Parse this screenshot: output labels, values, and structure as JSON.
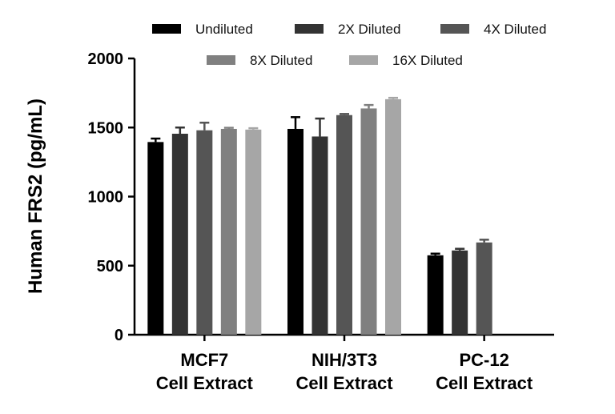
{
  "chart_data": {
    "type": "bar",
    "title": "",
    "xlabel": "",
    "ylabel": "Human FRS2 (pg/mL)",
    "ylim": [
      0,
      2000
    ],
    "yticks": [
      0,
      500,
      1000,
      1500,
      2000
    ],
    "categories": [
      [
        "MCF7",
        "Cell Extract"
      ],
      [
        "NIH/3T3",
        "Cell Extract"
      ],
      [
        "PC-12",
        "Cell Extract"
      ]
    ],
    "legend_position": "top",
    "grid": false,
    "series": [
      {
        "name": "Undiluted",
        "color": "#000000",
        "values": [
          1395,
          1490,
          575
        ],
        "errors": [
          25,
          85,
          12
        ]
      },
      {
        "name": "2X Diluted",
        "color": "#333333",
        "values": [
          1455,
          1435,
          610
        ],
        "errors": [
          45,
          130,
          12
        ]
      },
      {
        "name": "4X Diluted",
        "color": "#555555",
        "values": [
          1480,
          1590,
          668
        ],
        "errors": [
          55,
          8,
          20
        ]
      },
      {
        "name": "8X Diluted",
        "color": "#808080",
        "values": [
          1490,
          1638,
          null
        ],
        "errors": [
          8,
          25,
          null
        ]
      },
      {
        "name": "16X Diluted",
        "color": "#a6a6a6",
        "values": [
          1485,
          1705,
          null
        ],
        "errors": [
          10,
          10,
          null
        ]
      }
    ]
  }
}
